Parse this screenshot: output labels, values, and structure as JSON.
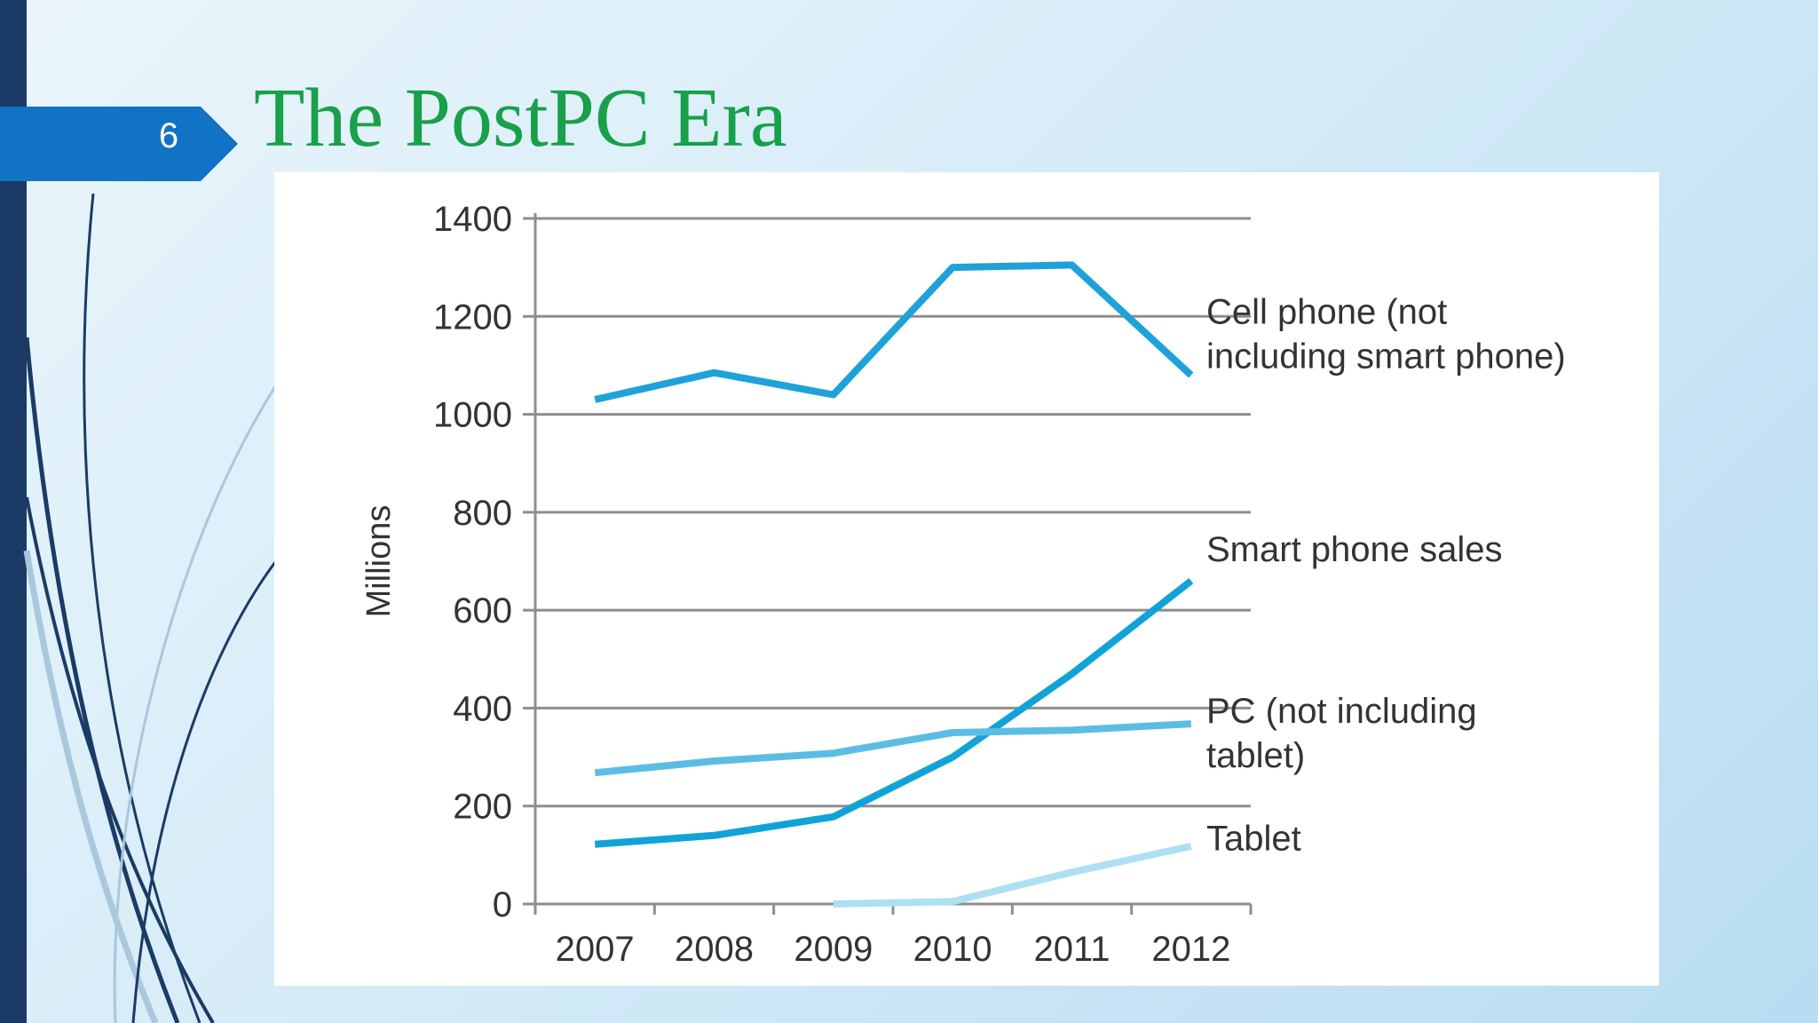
{
  "slide": {
    "number": "6",
    "title": "The PostPC Era"
  },
  "colors": {
    "title": "#18a04a",
    "badge": "#1272c4",
    "left_bar": "#1b3b66",
    "cell_phone": "#1ea2d9",
    "smart_phone": "#11a3d8",
    "pc": "#5cbde4",
    "tablet": "#aedff2",
    "grid": "#8e8e8e"
  },
  "chart_data": {
    "type": "line",
    "x": [
      "2007",
      "2008",
      "2009",
      "2010",
      "2011",
      "2012"
    ],
    "ylabel": "Millions",
    "xlabel": "",
    "ylim": [
      0,
      1400
    ],
    "yticks": [
      "0",
      "200",
      "400",
      "600",
      "800",
      "1000",
      "1200",
      "1400"
    ],
    "grid": "horizontal",
    "series": [
      {
        "name": "Cell phone (not including smart phone)",
        "label_lines": [
          "Cell phone (not",
          "including smart phone)"
        ],
        "color": "#1ea2d9",
        "values": [
          1030,
          1085,
          1040,
          1300,
          1305,
          1080
        ]
      },
      {
        "name": "Smart phone sales",
        "label_lines": [
          "Smart phone sales"
        ],
        "color": "#11a3d8",
        "values": [
          122,
          140,
          178,
          300,
          470,
          660
        ]
      },
      {
        "name": "PC (not including tablet)",
        "label_lines": [
          "PC (not including",
          "tablet)"
        ],
        "color": "#5cbde4",
        "values": [
          268,
          292,
          308,
          350,
          355,
          368
        ]
      },
      {
        "name": "Tablet",
        "label_lines": [
          "Tablet"
        ],
        "color": "#aedff2",
        "values": [
          null,
          null,
          0,
          5,
          65,
          118
        ]
      }
    ]
  }
}
